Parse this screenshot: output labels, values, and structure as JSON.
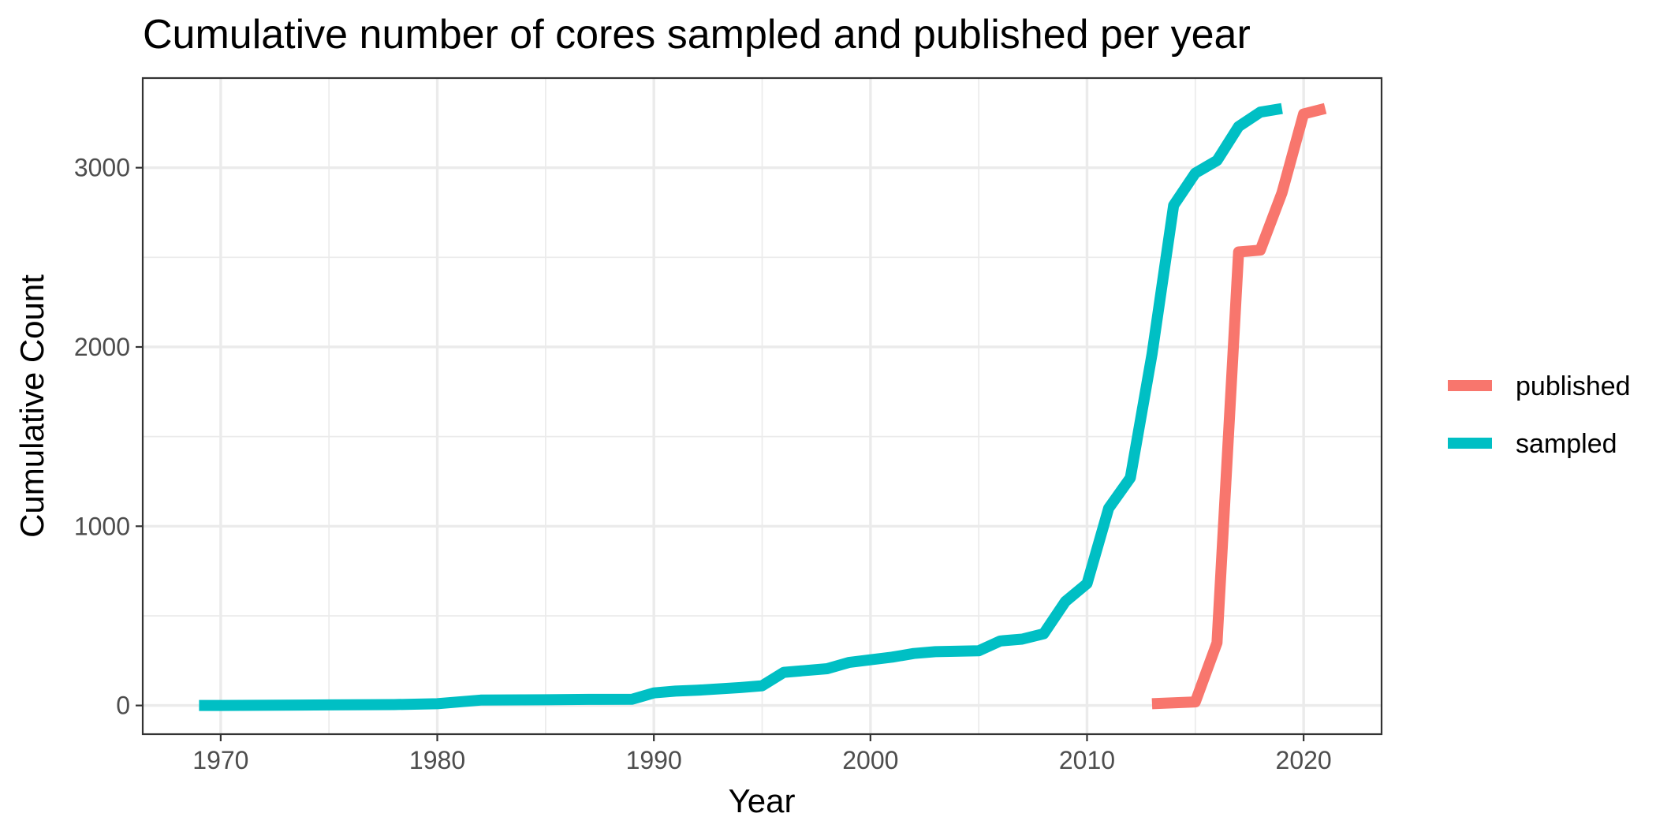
{
  "chart_data": {
    "type": "line",
    "title": "Cumulative number of cores sampled and published per year",
    "xlabel": "Year",
    "ylabel": "Cumulative Count",
    "xlim": [
      1966.4,
      2023.6
    ],
    "ylim": [
      -160,
      3500
    ],
    "x_ticks": [
      1970,
      1980,
      1990,
      2000,
      2010,
      2020
    ],
    "x_tick_labels": [
      "1970",
      "1980",
      "1990",
      "2000",
      "2010",
      "2020"
    ],
    "y_ticks": [
      0,
      1000,
      2000,
      3000
    ],
    "y_tick_labels": [
      "0",
      "1000",
      "2000",
      "3000"
    ],
    "grid": true,
    "legend_position": "right",
    "series": [
      {
        "name": "published",
        "color": "#F8766D",
        "x": [
          2013,
          2014,
          2015,
          2016,
          2017,
          2018,
          2019,
          2020,
          2021
        ],
        "y": [
          10,
          15,
          20,
          350,
          2530,
          2540,
          2860,
          3300,
          3330
        ]
      },
      {
        "name": "sampled",
        "color": "#00BFC4",
        "x": [
          1969,
          1970,
          1975,
          1978,
          1980,
          1982,
          1985,
          1987,
          1989,
          1990,
          1991,
          1992,
          1994,
          1995,
          1996,
          1997,
          1998,
          1999,
          2000,
          2001,
          2002,
          2003,
          2005,
          2006,
          2007,
          2008,
          2009,
          2010,
          2011,
          2012,
          2013,
          2014,
          2015,
          2016,
          2017,
          2018,
          2019
        ],
        "y": [
          0,
          0,
          3,
          5,
          10,
          30,
          32,
          34,
          35,
          70,
          80,
          85,
          100,
          110,
          185,
          195,
          205,
          240,
          255,
          270,
          290,
          300,
          305,
          360,
          370,
          400,
          580,
          680,
          1100,
          1270,
          1960,
          2790,
          2970,
          3040,
          3230,
          3310,
          3330
        ]
      }
    ]
  }
}
